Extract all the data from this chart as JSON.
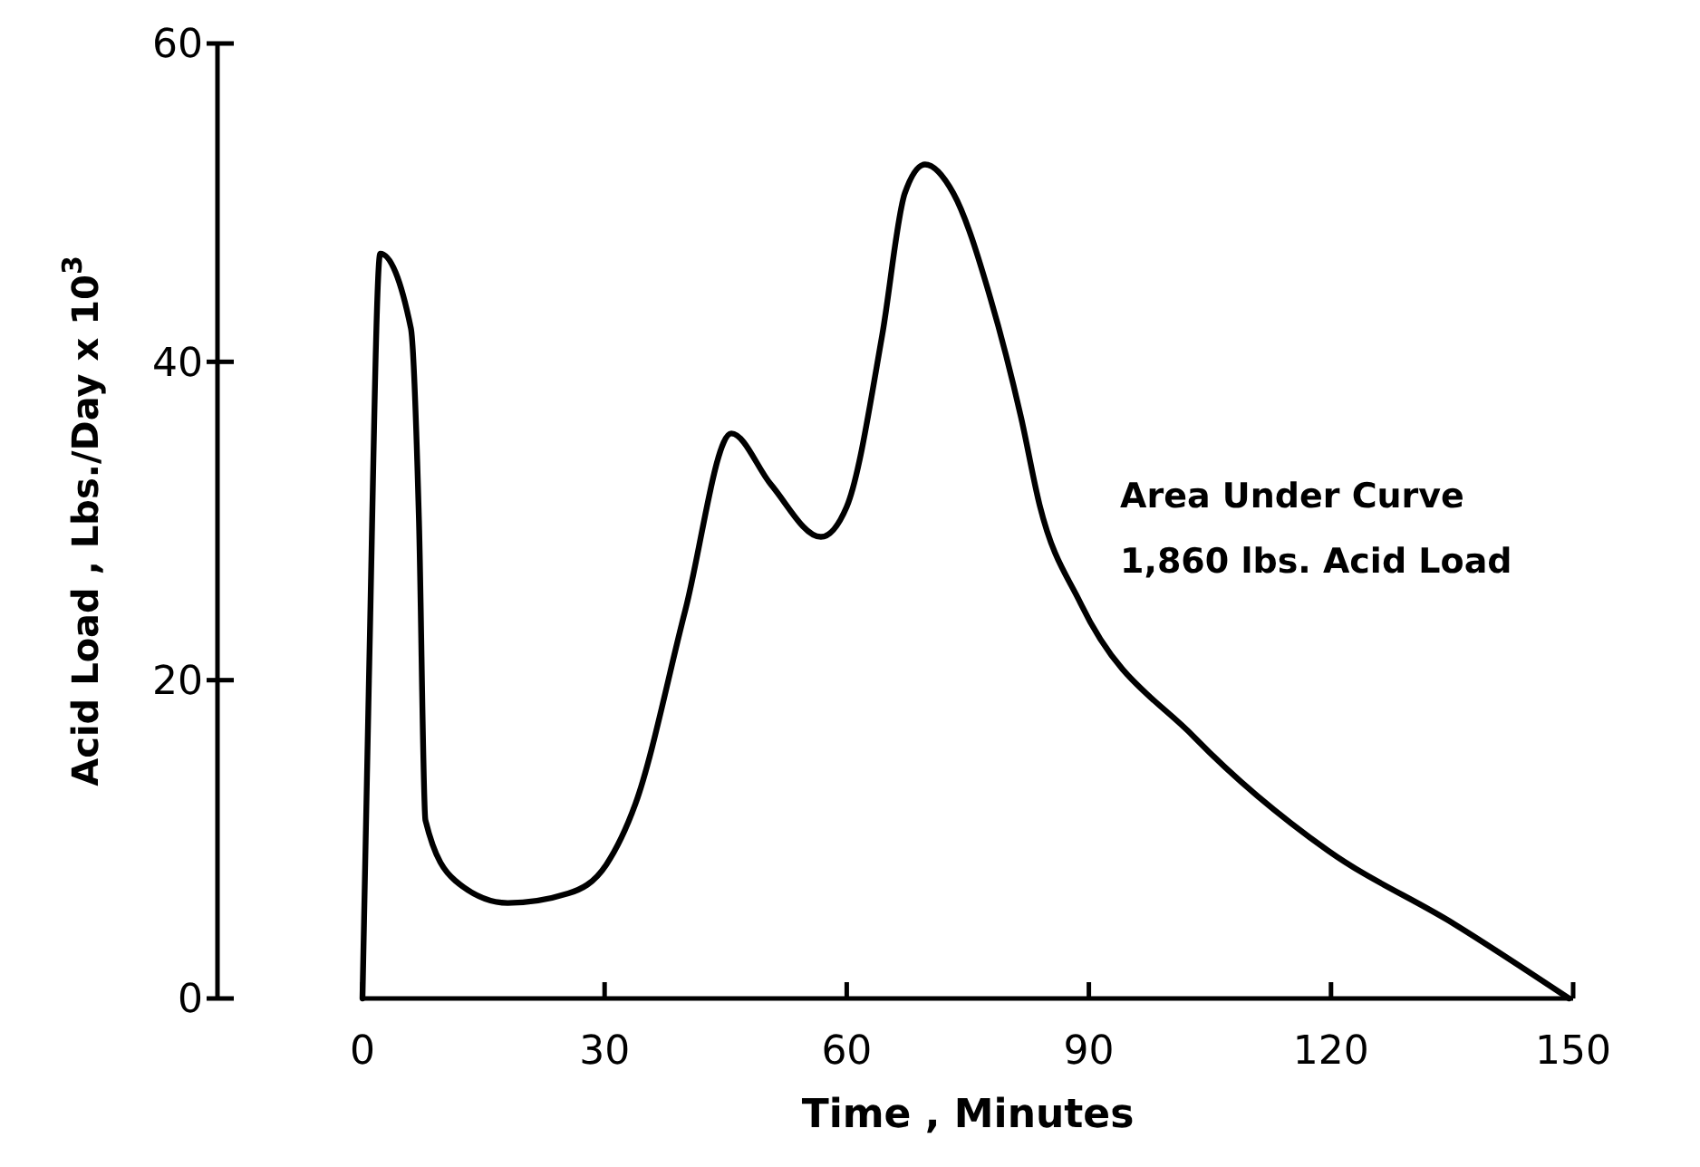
{
  "chart_data": {
    "type": "line",
    "xlabel": "Time ,  Minutes",
    "ylabel": "Acid Load ,  Lbs./Day x 10$^{3}$",
    "annotations": [
      "Area Under Curve\n1,860 lbs. Acid Load"
    ],
    "x": [
      0,
      0.8,
      2.2,
      6,
      7,
      7.8,
      11.5,
      18,
      25.5,
      30.2,
      33.8,
      40,
      45.7,
      50.6,
      56.8,
      60,
      64.4,
      67.2,
      69.7,
      73.2,
      77.8,
      81.6,
      83.9,
      89,
      103.1,
      119.6,
      135.2,
      149.5
    ],
    "series": [
      {
        "color": "#000000",
        "values": [
          0,
          20,
          46.8,
          42.1,
          30,
          11.2,
          7.4,
          6,
          6.6,
          8.4,
          12.2,
          24.4,
          35.5,
          32.3,
          29,
          30.9,
          41.7,
          50.6,
          52.4,
          50.6,
          44,
          36.5,
          31,
          24.8,
          16.4,
          9.3,
          4.7,
          0
        ]
      }
    ],
    "xlim": [
      0,
      150
    ],
    "xticks": [
      0,
      30,
      60,
      90,
      120,
      150
    ],
    "ylim": [
      0,
      60
    ],
    "yticks": [
      0,
      20,
      40,
      60
    ],
    "marker": "none",
    "line_style": "solid"
  }
}
